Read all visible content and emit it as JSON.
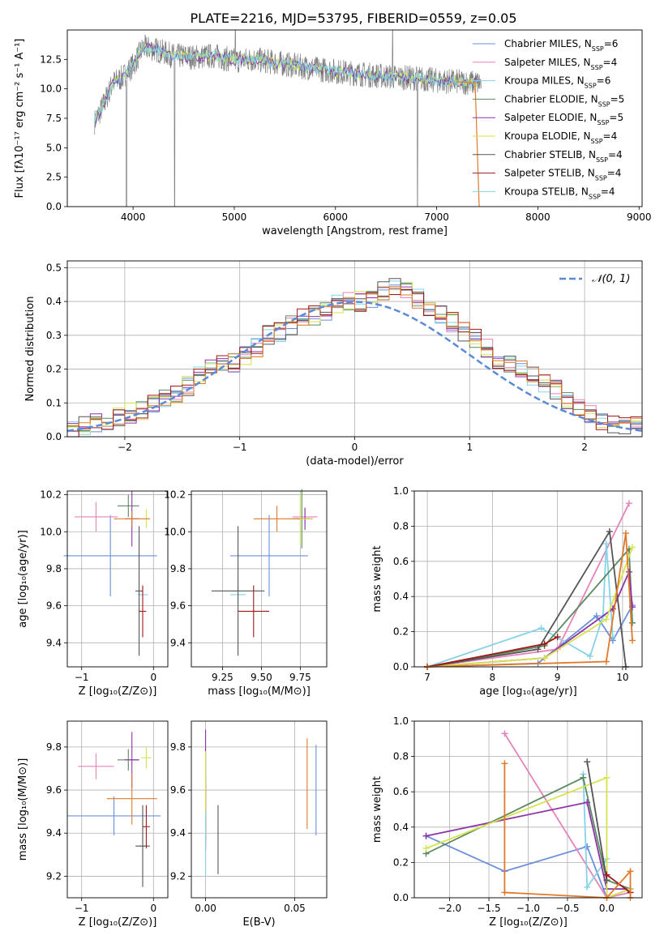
{
  "title": "PLATE=2216, MJD=53795, FIBERID=0559, z=0.05",
  "colors": {
    "series": [
      "#6a8fdc",
      "#e583ba",
      "#86d2e6",
      "#5a8a60",
      "#8d33a8",
      "#d7e34a",
      "#555555",
      "#a01818",
      "#7ed8e0"
    ],
    "normal_curve": "#5a8ad6",
    "orange": "#e07a2a",
    "grid": "#b0b0b0"
  },
  "chart_data": [
    {
      "panel": "spectrum",
      "type": "line",
      "xlabel": "wavelength [Angstrom, rest frame]",
      "ylabel": "Flux [fλ10⁻¹⁷ erg cm⁻² s⁻¹ A⁻¹]",
      "xlim": [
        3350,
        9030
      ],
      "ylim": [
        0,
        15
      ],
      "xticks": [
        "4000",
        "5000",
        "6000",
        "7000",
        "8000",
        "9000"
      ],
      "yticks": [
        "0.0",
        "2.5",
        "5.0",
        "7.5",
        "10.0",
        "12.5"
      ],
      "legend_position": "upper right",
      "legend": [
        {
          "label": "Chabrier MILES, N",
          "sub": "SSP",
          "suffix": "=6"
        },
        {
          "label": "Salpeter MILES, N",
          "sub": "SSP",
          "suffix": "=4"
        },
        {
          "label": "Kroupa MILES, N",
          "sub": "SSP",
          "suffix": "=6"
        },
        {
          "label": "Chabrier ELODIE, N",
          "sub": "SSP",
          "suffix": "=5"
        },
        {
          "label": "Salpeter ELODIE, N",
          "sub": "SSP",
          "suffix": "=5"
        },
        {
          "label": "Kroupa ELODIE, N",
          "sub": "SSP",
          "suffix": "=4"
        },
        {
          "label": "Chabrier STELIB, N",
          "sub": "SSP",
          "suffix": "=4"
        },
        {
          "label": "Salpeter STELIB, N",
          "sub": "SSP",
          "suffix": "=4"
        },
        {
          "label": "Kroupa STELIB, N",
          "sub": "SSP",
          "suffix": "=4"
        }
      ],
      "continuum": {
        "x": [
          3620,
          3700,
          3800,
          3900,
          4000,
          4100,
          4200,
          4400,
          4600,
          4800,
          5000,
          5200,
          5500,
          5800,
          6000,
          6300,
          6600,
          6800,
          7000,
          7200,
          7400
        ],
        "y": [
          7.2,
          8.5,
          10.5,
          11.0,
          12.0,
          13.5,
          13.4,
          12.8,
          12.7,
          12.8,
          12.4,
          12.5,
          12.1,
          11.7,
          11.5,
          11.2,
          11.0,
          10.9,
          10.7,
          10.6,
          10.5
        ]
      }
    },
    {
      "panel": "residuals",
      "type": "area",
      "xlabel": "(data-model)/error",
      "ylabel": "Normed distribution",
      "xlim": [
        -2.5,
        2.5
      ],
      "ylim": [
        0,
        0.52
      ],
      "xticks": [
        "−2",
        "−1",
        "0",
        "1",
        "2"
      ],
      "yticks": [
        "0.0",
        "0.1",
        "0.2",
        "0.3",
        "0.4",
        "0.5"
      ],
      "legend": "𝒩(0, 1)",
      "legend_position": "upper right",
      "bin_width": 0.1,
      "bin_start": -2.5,
      "values": [
        0.02,
        0.03,
        0.04,
        0.05,
        0.06,
        0.07,
        0.08,
        0.1,
        0.11,
        0.13,
        0.15,
        0.18,
        0.2,
        0.22,
        0.22,
        0.24,
        0.26,
        0.3,
        0.31,
        0.33,
        0.35,
        0.36,
        0.37,
        0.39,
        0.4,
        0.4,
        0.41,
        0.43,
        0.44,
        0.44,
        0.41,
        0.37,
        0.36,
        0.34,
        0.31,
        0.29,
        0.26,
        0.23,
        0.21,
        0.2,
        0.18,
        0.16,
        0.14,
        0.11,
        0.09,
        0.07,
        0.05,
        0.04,
        0.03,
        0.03
      ]
    },
    {
      "panel": "age_vs_Z",
      "type": "scatter",
      "xlabel": "Z [log₁₀(Z/Z⊙)]",
      "ylabel": "age  [log₁₀(age/yr)]",
      "xlim": [
        -1.2,
        0.2
      ],
      "ylim": [
        9.27,
        10.22
      ],
      "xticks": [
        "−1",
        "0"
      ],
      "yticks": [
        "9.4",
        "9.6",
        "9.8",
        "10.0",
        "10.2"
      ],
      "points": [
        {
          "x": -0.6,
          "y": 9.87,
          "xerr": 0.65,
          "yerr": 0.22,
          "c": 0
        },
        {
          "x": -0.8,
          "y": 10.08,
          "xerr": 0.3,
          "yerr": 0.08,
          "c": 1
        },
        {
          "x": -0.15,
          "y": 9.66,
          "xerr": 0.07,
          "yerr": 0.03,
          "c": 2
        },
        {
          "x": -0.35,
          "y": 10.14,
          "xerr": 0.15,
          "yerr": 0.06,
          "c": 3
        },
        {
          "x": -0.3,
          "y": 10.07,
          "xerr": 0.1,
          "yerr": 0.15,
          "c": 4
        },
        {
          "x": -0.1,
          "y": 10.07,
          "xerr": 0.05,
          "yerr": 0.05,
          "c": 5
        },
        {
          "x": -0.2,
          "y": 9.68,
          "xerr": 0.05,
          "yerr": 0.35,
          "c": 6
        },
        {
          "x": -0.15,
          "y": 9.57,
          "xerr": 0.05,
          "yerr": 0.14,
          "c": 7
        },
        {
          "x": -0.3,
          "y": 10.07,
          "xerr": 0.25,
          "yerr": 0.04,
          "c": "orange"
        }
      ]
    },
    {
      "panel": "age_vs_mass",
      "type": "scatter",
      "xlabel": "mass [log₁₀(M/M⊙)]",
      "ylabel": "",
      "xlim": [
        9.05,
        9.92
      ],
      "ylim": [
        9.27,
        10.22
      ],
      "xticks": [
        "9.25",
        "9.50",
        "9.75"
      ],
      "yticks": [
        "9.4",
        "9.6",
        "9.8",
        "10.0",
        "10.2"
      ],
      "points": [
        {
          "x": 9.55,
          "y": 9.87,
          "xerr": 0.25,
          "yerr": 0.22,
          "c": 0
        },
        {
          "x": 9.78,
          "y": 10.08,
          "xerr": 0.08,
          "yerr": 0.05,
          "c": 1
        },
        {
          "x": 9.35,
          "y": 9.66,
          "xerr": 0.05,
          "yerr": 0.05,
          "c": 2
        },
        {
          "x": 9.76,
          "y": 10.07,
          "xerr": 0.05,
          "yerr": 0.16,
          "c": 3
        },
        {
          "x": 9.78,
          "y": 10.07,
          "xerr": 0.05,
          "yerr": 0.06,
          "c": 4
        },
        {
          "x": 9.75,
          "y": 10.07,
          "xerr": 0.08,
          "yerr": 0.14,
          "c": 5
        },
        {
          "x": 9.35,
          "y": 9.68,
          "xerr": 0.17,
          "yerr": 0.35,
          "c": 6
        },
        {
          "x": 9.45,
          "y": 9.57,
          "xerr": 0.1,
          "yerr": 0.14,
          "c": 7
        },
        {
          "x": 9.6,
          "y": 10.07,
          "xerr": 0.15,
          "yerr": 0.07,
          "c": "orange"
        }
      ]
    },
    {
      "panel": "mass_weight_vs_age",
      "type": "line",
      "xlabel": "age  [log₁₀(age/yr)]",
      "ylabel": "mass weight",
      "xlim": [
        6.8,
        10.3
      ],
      "ylim": [
        0,
        1
      ],
      "xticks": [
        "7",
        "8",
        "9",
        "10"
      ],
      "yticks": [
        "0.0",
        "0.2",
        "0.4",
        "0.6",
        "0.8",
        "1.0"
      ],
      "series": [
        {
          "c": 0,
          "x": [
            7.0,
            8.7,
            9.6,
            9.85,
            10.15
          ],
          "y": [
            0.0,
            0.02,
            0.29,
            0.15,
            0.35
          ]
        },
        {
          "c": 1,
          "x": [
            7.0,
            9.0,
            10.1
          ],
          "y": [
            0.0,
            0.1,
            0.93
          ]
        },
        {
          "c": 2,
          "x": [
            7.0,
            8.75,
            9.5,
            9.7,
            9.75,
            9.85
          ],
          "y": [
            0.0,
            0.22,
            0.06,
            0.29,
            0.7,
            0.17
          ]
        },
        {
          "c": 3,
          "x": [
            7.0,
            8.8,
            10.1,
            10.15
          ],
          "y": [
            0.0,
            0.12,
            0.67,
            0.25
          ]
        },
        {
          "c": 4,
          "x": [
            7.0,
            8.8,
            9.85,
            10.1,
            10.15
          ],
          "y": [
            0.0,
            0.05,
            0.33,
            0.54,
            0.34
          ]
        },
        {
          "c": 5,
          "x": [
            7.0,
            8.8,
            9.75,
            10.15
          ],
          "y": [
            0.0,
            0.05,
            0.27,
            0.68
          ]
        },
        {
          "c": 6,
          "x": [
            7.0,
            8.7,
            9.8,
            10.05
          ],
          "y": [
            0.0,
            0.1,
            0.77,
            0.0
          ]
        },
        {
          "c": 7,
          "x": [
            7.0,
            8.8,
            9.0
          ],
          "y": [
            0.0,
            0.13,
            0.17
          ]
        },
        {
          "c": "orange",
          "x": [
            7.0,
            9.75,
            10.05,
            10.15
          ],
          "y": [
            0.0,
            0.03,
            0.76,
            0.15
          ]
        }
      ]
    },
    {
      "panel": "mass_vs_Z",
      "type": "scatter",
      "xlabel": "Z [log₁₀(Z/Z⊙)]",
      "ylabel": "mass [log₁₀(M/M⊙)]",
      "xlim": [
        -1.2,
        0.2
      ],
      "ylim": [
        9.1,
        9.92
      ],
      "xticks": [
        "−1",
        "0"
      ],
      "yticks": [
        "9.2",
        "9.4",
        "9.6",
        "9.8"
      ],
      "points": [
        {
          "x": -0.55,
          "y": 9.48,
          "xerr": 0.65,
          "yerr": 0.09,
          "c": 0
        },
        {
          "x": -0.8,
          "y": 9.71,
          "xerr": 0.25,
          "yerr": 0.06,
          "c": 1
        },
        {
          "x": -0.15,
          "y": 9.34,
          "xerr": 0.05,
          "yerr": 0.05,
          "c": 2
        },
        {
          "x": -0.35,
          "y": 9.74,
          "xerr": 0.15,
          "yerr": 0.05,
          "c": 3
        },
        {
          "x": -0.3,
          "y": 9.74,
          "xerr": 0.1,
          "yerr": 0.13,
          "c": 4
        },
        {
          "x": -0.1,
          "y": 9.75,
          "xerr": 0.07,
          "yerr": 0.05,
          "c": 5
        },
        {
          "x": -0.15,
          "y": 9.34,
          "xerr": 0.1,
          "yerr": 0.19,
          "c": 6
        },
        {
          "x": -0.1,
          "y": 9.43,
          "xerr": 0.05,
          "yerr": 0.1,
          "c": 7
        },
        {
          "x": -0.3,
          "y": 9.56,
          "xerr": 0.35,
          "yerr": 0.12,
          "c": "orange"
        }
      ]
    },
    {
      "panel": "mass_vs_EBV",
      "type": "scatter",
      "xlabel": "E(B-V)",
      "ylabel": "",
      "xlim": [
        -0.008,
        0.068
      ],
      "ylim": [
        9.1,
        9.92
      ],
      "xticks": [
        "0.00",
        "0.05"
      ],
      "yticks": [
        "9.2",
        "9.4",
        "9.6",
        "9.8"
      ],
      "points": [
        {
          "x": 0.062,
          "y": 9.6,
          "yerr": 0.21,
          "c": 0
        },
        {
          "x": 0.057,
          "y": 9.63,
          "yerr": 0.21,
          "c": "orange"
        },
        {
          "x": 0.0,
          "y": 9.56,
          "yerr": 0.22,
          "c": 3
        },
        {
          "x": 0.0,
          "y": 9.6,
          "yerr": 0.28,
          "c": 4
        },
        {
          "x": 0.0,
          "y": 9.5,
          "yerr": 0.13,
          "c": 7
        },
        {
          "x": 0.0,
          "y": 9.58,
          "yerr": 0.2,
          "c": 5
        },
        {
          "x": 0.0,
          "y": 9.35,
          "yerr": 0.15,
          "c": 2
        },
        {
          "x": 0.007,
          "y": 9.37,
          "yerr": 0.16,
          "c": 6
        }
      ]
    },
    {
      "panel": "mass_weight_vs_Z",
      "type": "line",
      "xlabel": "Z [log₁₀(Z/Z⊙)]",
      "ylabel": "mass weight",
      "xlim": [
        -2.45,
        0.45
      ],
      "ylim": [
        0,
        1
      ],
      "xticks": [
        "−2.0",
        "−1.5",
        "−1.0",
        "−0.5",
        "0.0"
      ],
      "yticks": [
        "0.0",
        "0.2",
        "0.4",
        "0.6",
        "0.8",
        "1.0"
      ],
      "series": [
        {
          "c": 0,
          "x": [
            -2.3,
            -1.3,
            -0.25,
            0.0,
            0.3
          ],
          "y": [
            0.35,
            0.15,
            0.29,
            0.0,
            0.05
          ]
        },
        {
          "c": 1,
          "x": [
            -1.3,
            0.0,
            0.3
          ],
          "y": [
            0.93,
            0.0,
            0.03
          ]
        },
        {
          "c": 2,
          "x": [
            -0.3,
            -0.25,
            0.0,
            0.0
          ],
          "y": [
            0.7,
            0.06,
            0.22,
            0.0
          ]
        },
        {
          "c": 3,
          "x": [
            -2.3,
            -0.3,
            0.0,
            0.3
          ],
          "y": [
            0.25,
            0.68,
            0.1,
            0.05
          ]
        },
        {
          "c": 4,
          "x": [
            -2.3,
            -0.25,
            0.0,
            0.3
          ],
          "y": [
            0.35,
            0.54,
            0.05,
            0.05
          ]
        },
        {
          "c": 5,
          "x": [
            -2.3,
            0.0,
            0.0,
            0.3
          ],
          "y": [
            0.28,
            0.68,
            0.0,
            0.05
          ]
        },
        {
          "c": 6,
          "x": [
            -0.25,
            0.0
          ],
          "y": [
            0.77,
            0.1
          ]
        },
        {
          "c": 7,
          "x": [
            0.0,
            0.3
          ],
          "y": [
            0.13,
            0.03
          ]
        },
        {
          "c": "orange",
          "x": [
            -1.3,
            -1.3,
            0.0,
            0.3,
            0.3
          ],
          "y": [
            0.76,
            0.03,
            0.0,
            0.15,
            0.0
          ]
        }
      ]
    }
  ]
}
